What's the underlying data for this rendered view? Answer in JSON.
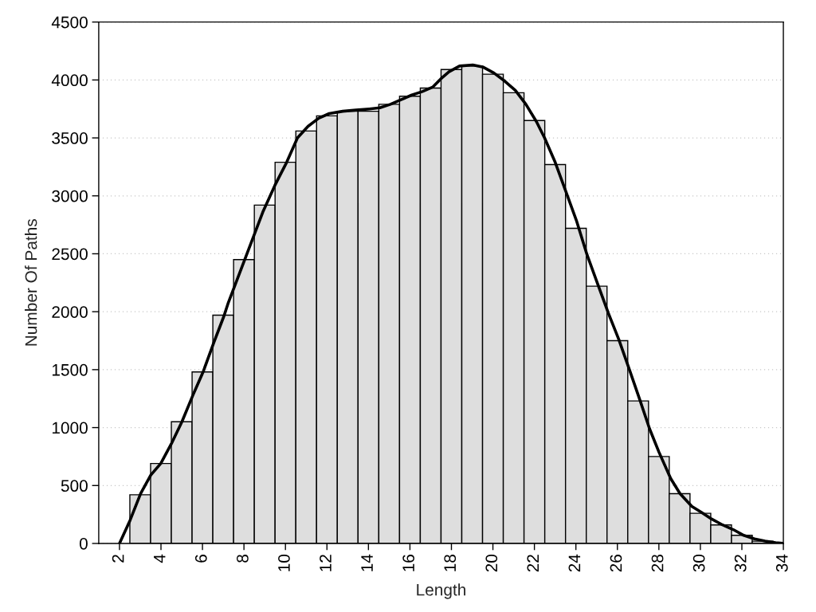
{
  "chart_data": {
    "type": "histogram",
    "xlabel": "Length",
    "ylabel": "Number Of Paths",
    "series": [
      {
        "color": "#dedede",
        "bins": [
          2.5,
          3.5,
          4.5,
          5.5,
          6.5,
          7.5,
          8.5,
          9.5,
          10.5,
          11.5,
          12.5,
          13.5,
          14.5,
          15.5,
          16.5,
          17.5,
          18.5,
          19.5,
          20.5,
          21.5,
          22.5,
          23.5,
          24.5,
          25.5,
          26.5,
          27.5,
          28.5,
          29.5,
          30.5,
          31.5,
          32.5,
          33.5
        ],
        "values": [
          420,
          690,
          1050,
          1480,
          1970,
          2450,
          2920,
          3290,
          3560,
          3690,
          3730,
          3730,
          3790,
          3860,
          3930,
          4090,
          4120,
          4050,
          3890,
          3650,
          3270,
          2720,
          2220,
          1750,
          1230,
          750,
          430,
          260,
          160,
          70,
          20
        ]
      },
      {
        "type": "line",
        "color": "#000000",
        "x": [
          2.0,
          2.51,
          3.02,
          3.51,
          3.99,
          4.5,
          5.01,
          5.54,
          6.03,
          6.54,
          7.03,
          7.25,
          8.91,
          9.49,
          10.06,
          10.58,
          11.09,
          11.6,
          12.11,
          12.76,
          13.4,
          14.04,
          14.55,
          15.06,
          15.57,
          16.09,
          16.6,
          17.11,
          17.49,
          17.88,
          18.39,
          19.03,
          19.54,
          20.05,
          20.57,
          21.08,
          21.59,
          22.1,
          22.49,
          23.0,
          23.51,
          24.02,
          24.54,
          25.05,
          25.56,
          26.07,
          26.58,
          27.1,
          27.55,
          28.0,
          28.57,
          29.02,
          29.59,
          30.04,
          30.55,
          31.07,
          31.58,
          32.09,
          32.61,
          33.12,
          33.63,
          33.98
        ],
        "values": [
          0,
          200,
          430,
          590,
          690,
          860,
          1050,
          1280,
          1480,
          1730,
          1960,
          2080,
          2860,
          3090,
          3290,
          3500,
          3600,
          3670,
          3710,
          3730,
          3740,
          3750,
          3760,
          3790,
          3830,
          3870,
          3900,
          3940,
          4010,
          4070,
          4120,
          4130,
          4110,
          4060,
          3990,
          3910,
          3790,
          3640,
          3500,
          3290,
          3040,
          2790,
          2490,
          2240,
          1990,
          1760,
          1500,
          1230,
          990,
          790,
          560,
          430,
          320,
          270,
          210,
          160,
          120,
          70,
          40,
          20,
          7,
          2
        ]
      }
    ],
    "xlim": [
      1,
      34
    ],
    "xticks": [
      2,
      4,
      6,
      8,
      10,
      12,
      14,
      16,
      18,
      20,
      22,
      24,
      26,
      28,
      30,
      32,
      34
    ],
    "ylim": [
      0,
      4500
    ],
    "yticks": [
      0,
      500,
      1000,
      1500,
      2000,
      2500,
      3000,
      3500,
      4000,
      4500
    ],
    "grid": "y"
  }
}
